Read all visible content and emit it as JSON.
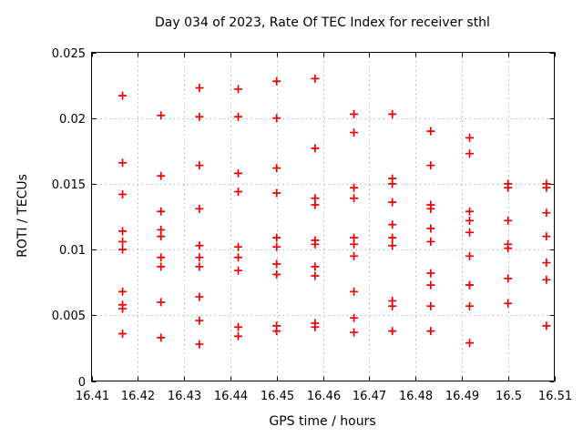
{
  "title": "Day 034 of 2023, Rate Of TEC Index for receiver sthl",
  "colors": {
    "marker": "#ee0000",
    "grid": "#b3b3b3",
    "border": "#000000",
    "background": "#ffffff",
    "text": "#000000"
  },
  "chart_data": {
    "type": "scatter",
    "title": "Day 034 of 2023, Rate Of TEC Index for receiver sthl",
    "xlabel": "GPS time / hours",
    "ylabel": "ROTI / TECUs",
    "xlim": [
      16.41,
      16.51
    ],
    "ylim": [
      0,
      0.025
    ],
    "xticks": [
      16.41,
      16.42,
      16.43,
      16.44,
      16.45,
      16.46,
      16.47,
      16.48,
      16.49,
      16.5,
      16.51
    ],
    "xtick_labels": [
      "16.41",
      "16.42",
      "16.43",
      "16.44",
      "16.45",
      "16.46",
      "16.47",
      "16.48",
      "16.49",
      "16.5",
      "16.51"
    ],
    "yticks": [
      0,
      0.005,
      0.01,
      0.015,
      0.02,
      0.025
    ],
    "ytick_labels": [
      "0",
      "0.005",
      "0.01",
      "0.015",
      "0.02",
      "0.025"
    ],
    "grid": true,
    "legend_position": "none",
    "marker": {
      "symbol": "plus",
      "color": "#ee0000",
      "size": 9
    },
    "series": [
      {
        "name": "ROTI",
        "points": [
          [
            16.4167,
            0.0217
          ],
          [
            16.4167,
            0.0166
          ],
          [
            16.4167,
            0.0142
          ],
          [
            16.4167,
            0.0114
          ],
          [
            16.4167,
            0.0106
          ],
          [
            16.4167,
            0.01
          ],
          [
            16.4167,
            0.0068
          ],
          [
            16.4167,
            0.0058
          ],
          [
            16.4167,
            0.0055
          ],
          [
            16.4167,
            0.0036
          ],
          [
            16.425,
            0.0202
          ],
          [
            16.425,
            0.0156
          ],
          [
            16.425,
            0.0129
          ],
          [
            16.425,
            0.0115
          ],
          [
            16.425,
            0.011
          ],
          [
            16.425,
            0.0094
          ],
          [
            16.425,
            0.0087
          ],
          [
            16.425,
            0.006
          ],
          [
            16.425,
            0.0033
          ],
          [
            16.4333,
            0.0223
          ],
          [
            16.4333,
            0.0201
          ],
          [
            16.4333,
            0.0164
          ],
          [
            16.4333,
            0.0131
          ],
          [
            16.4333,
            0.0103
          ],
          [
            16.4333,
            0.0094
          ],
          [
            16.4333,
            0.0087
          ],
          [
            16.4333,
            0.0064
          ],
          [
            16.4333,
            0.0046
          ],
          [
            16.4333,
            0.0028
          ],
          [
            16.4417,
            0.0222
          ],
          [
            16.4417,
            0.0201
          ],
          [
            16.4417,
            0.0158
          ],
          [
            16.4417,
            0.0144
          ],
          [
            16.4417,
            0.0102
          ],
          [
            16.4417,
            0.0094
          ],
          [
            16.4417,
            0.0084
          ],
          [
            16.4417,
            0.0041
          ],
          [
            16.4417,
            0.0034
          ],
          [
            16.45,
            0.0228
          ],
          [
            16.45,
            0.02
          ],
          [
            16.45,
            0.0162
          ],
          [
            16.45,
            0.0143
          ],
          [
            16.45,
            0.0109
          ],
          [
            16.45,
            0.0102
          ],
          [
            16.45,
            0.0089
          ],
          [
            16.45,
            0.0081
          ],
          [
            16.45,
            0.0042
          ],
          [
            16.45,
            0.0038
          ],
          [
            16.4583,
            0.023
          ],
          [
            16.4583,
            0.0177
          ],
          [
            16.4583,
            0.0139
          ],
          [
            16.4583,
            0.0134
          ],
          [
            16.4583,
            0.0107
          ],
          [
            16.4583,
            0.0104
          ],
          [
            16.4583,
            0.0087
          ],
          [
            16.4583,
            0.008
          ],
          [
            16.4583,
            0.0044
          ],
          [
            16.4583,
            0.0041
          ],
          [
            16.4667,
            0.0203
          ],
          [
            16.4667,
            0.0189
          ],
          [
            16.4667,
            0.0147
          ],
          [
            16.4667,
            0.0139
          ],
          [
            16.4667,
            0.0109
          ],
          [
            16.4667,
            0.0104
          ],
          [
            16.4667,
            0.0095
          ],
          [
            16.4667,
            0.0068
          ],
          [
            16.4667,
            0.0048
          ],
          [
            16.4667,
            0.0037
          ],
          [
            16.475,
            0.0203
          ],
          [
            16.475,
            0.0154
          ],
          [
            16.475,
            0.015
          ],
          [
            16.475,
            0.0136
          ],
          [
            16.475,
            0.0119
          ],
          [
            16.475,
            0.0109
          ],
          [
            16.475,
            0.0103
          ],
          [
            16.475,
            0.0061
          ],
          [
            16.475,
            0.0057
          ],
          [
            16.475,
            0.0038
          ],
          [
            16.4833,
            0.019
          ],
          [
            16.4833,
            0.0164
          ],
          [
            16.4833,
            0.0134
          ],
          [
            16.4833,
            0.0131
          ],
          [
            16.4833,
            0.0116
          ],
          [
            16.4833,
            0.0106
          ],
          [
            16.4833,
            0.0082
          ],
          [
            16.4833,
            0.0073
          ],
          [
            16.4833,
            0.0057
          ],
          [
            16.4833,
            0.0038
          ],
          [
            16.4917,
            0.0185
          ],
          [
            16.4917,
            0.0173
          ],
          [
            16.4917,
            0.0129
          ],
          [
            16.4917,
            0.0122
          ],
          [
            16.4917,
            0.0113
          ],
          [
            16.4917,
            0.0095
          ],
          [
            16.4917,
            0.0073
          ],
          [
            16.4917,
            0.0073
          ],
          [
            16.4917,
            0.0057
          ],
          [
            16.4917,
            0.0029
          ],
          [
            16.5,
            0.015
          ],
          [
            16.5,
            0.0147
          ],
          [
            16.5,
            0.0122
          ],
          [
            16.5,
            0.0104
          ],
          [
            16.5,
            0.0101
          ],
          [
            16.5,
            0.0078
          ],
          [
            16.5,
            0.0059
          ],
          [
            16.5083,
            0.015
          ],
          [
            16.5083,
            0.0147
          ],
          [
            16.5083,
            0.0128
          ],
          [
            16.5083,
            0.011
          ],
          [
            16.5083,
            0.009
          ],
          [
            16.5083,
            0.0077
          ],
          [
            16.5083,
            0.0042
          ]
        ]
      }
    ]
  }
}
